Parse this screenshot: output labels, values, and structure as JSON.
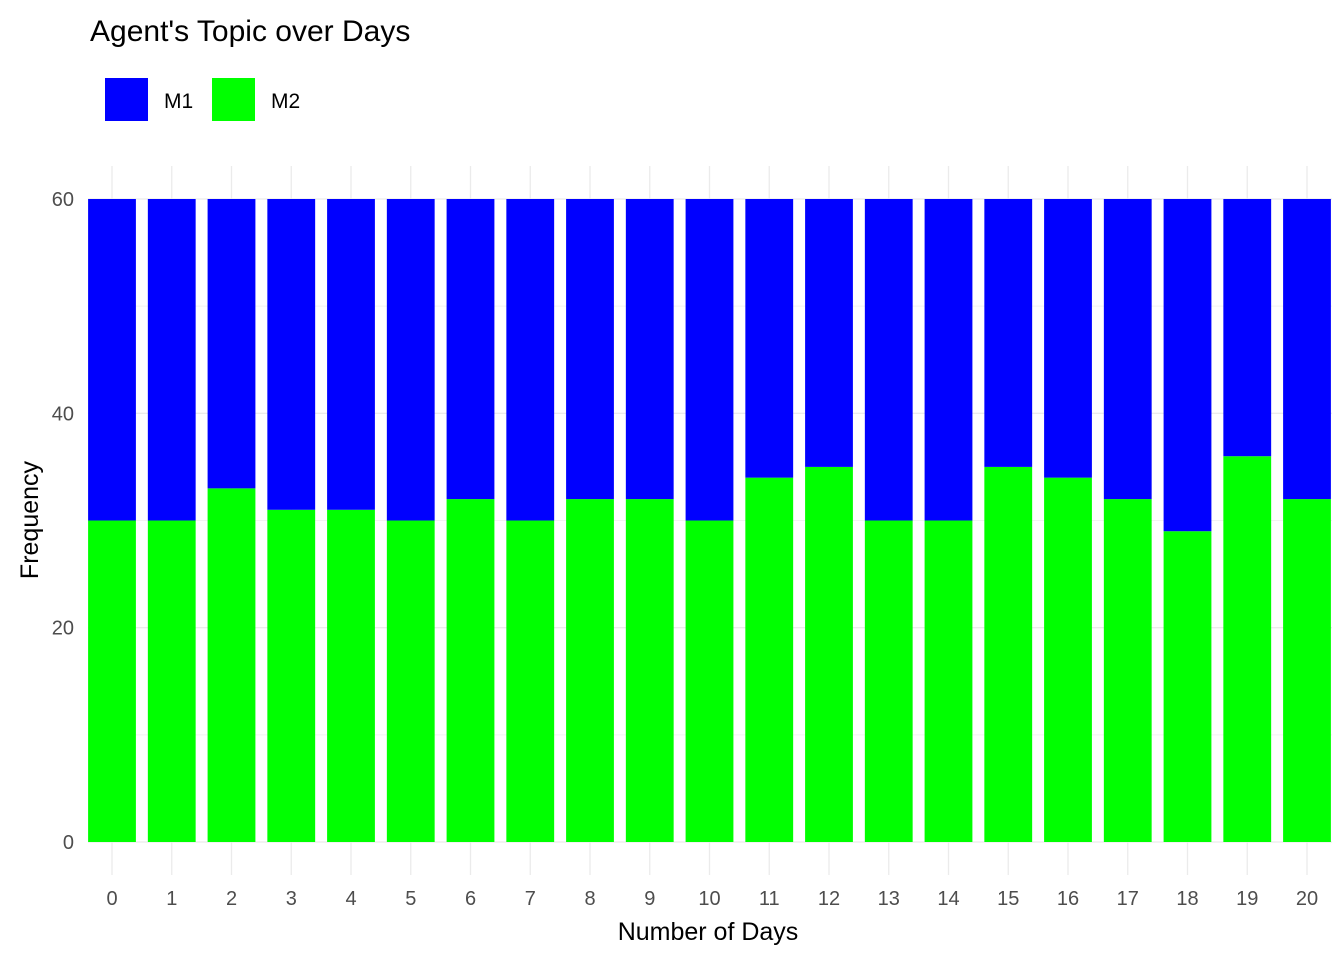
{
  "chart_data": {
    "type": "bar",
    "stacked": true,
    "title": "Agent's Topic over Days",
    "xlabel": "Number of Days",
    "ylabel": "Frequency",
    "categories": [
      "0",
      "1",
      "2",
      "3",
      "4",
      "5",
      "6",
      "7",
      "8",
      "9",
      "10",
      "11",
      "12",
      "13",
      "14",
      "15",
      "16",
      "17",
      "18",
      "19",
      "20"
    ],
    "series": [
      {
        "name": "M2",
        "color": "#00FF00",
        "values": [
          30,
          30,
          33,
          31,
          31,
          30,
          32,
          30,
          32,
          32,
          30,
          34,
          35,
          30,
          30,
          35,
          34,
          32,
          29,
          36,
          32
        ]
      },
      {
        "name": "M1",
        "color": "#0000FF",
        "values": [
          30,
          30,
          27,
          29,
          29,
          30,
          28,
          30,
          28,
          28,
          30,
          26,
          25,
          30,
          30,
          25,
          26,
          28,
          31,
          24,
          28
        ]
      }
    ],
    "legend": {
      "position": "top-left",
      "order": [
        "M1",
        "M2"
      ]
    },
    "ylim": [
      0,
      60
    ],
    "yticks": [
      0,
      20,
      40,
      60
    ],
    "grid": true
  }
}
